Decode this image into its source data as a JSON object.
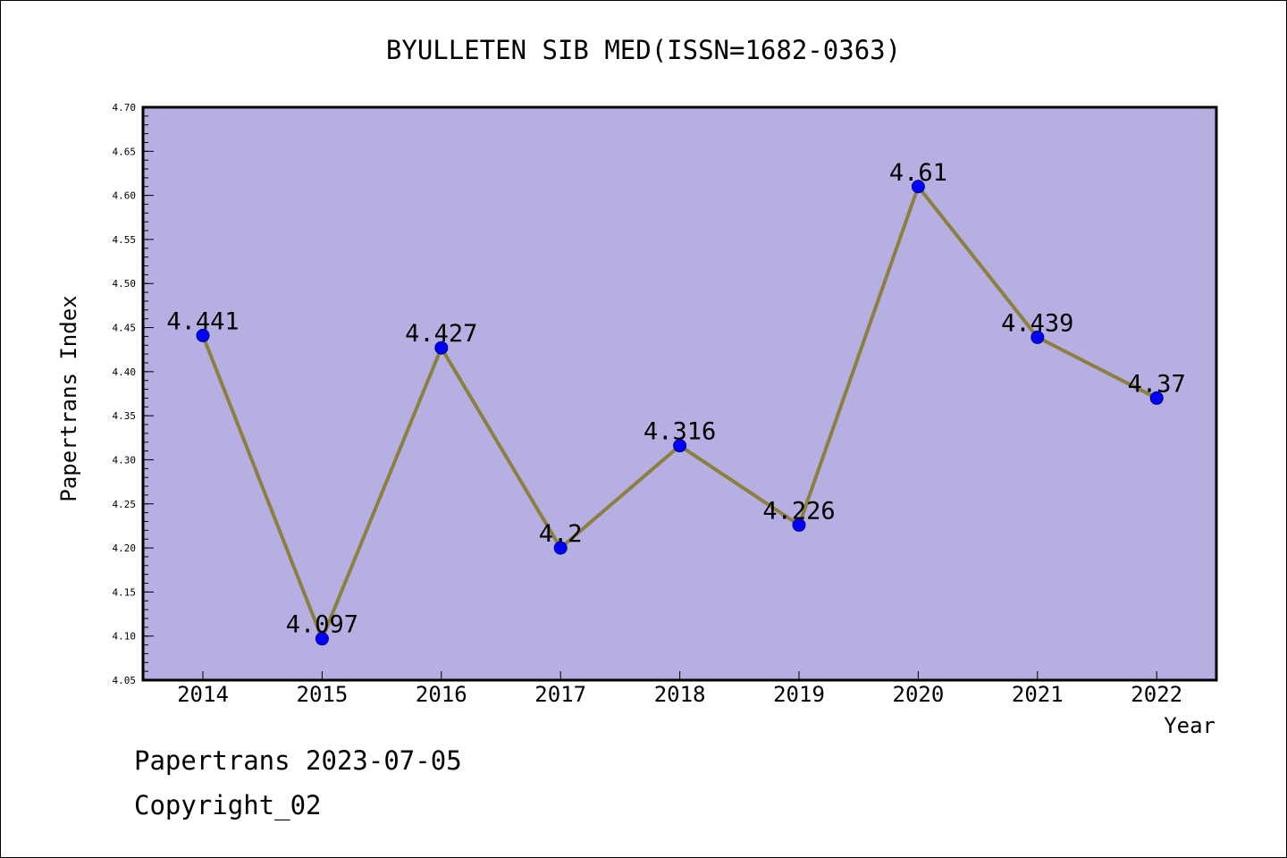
{
  "chart_data": {
    "type": "line",
    "title": "BYULLETEN SIB MED(ISSN=1682-0363)",
    "xlabel": "Year",
    "ylabel": "Papertrans Index",
    "categories": [
      "2014",
      "2015",
      "2016",
      "2017",
      "2018",
      "2019",
      "2020",
      "2021",
      "2022"
    ],
    "series": [
      {
        "values": [
          4.441,
          4.097,
          4.427,
          4.2,
          4.316,
          4.226,
          4.61,
          4.439,
          4.37
        ],
        "value_labels": [
          "4.441",
          "4.097",
          "4.427",
          "4.2",
          "4.316",
          "4.226",
          "4.61",
          "4.439",
          "4.37"
        ]
      }
    ],
    "ylim": [
      4.05,
      4.7
    ],
    "yticks": [
      "4.05",
      "4.10",
      "4.15",
      "4.20",
      "4.25",
      "4.30",
      "4.35",
      "4.40",
      "4.45",
      "4.50",
      "4.55",
      "4.60",
      "4.65",
      "4.70"
    ],
    "grid": false,
    "colors": {
      "plot_background": "#b5afe2",
      "line": "#8c7f3f",
      "marker_fill": "#0000ff",
      "marker_edge": "#000080"
    }
  },
  "footer": {
    "line1": "Papertrans 2023-07-05",
    "line2": "Copyright_02"
  }
}
